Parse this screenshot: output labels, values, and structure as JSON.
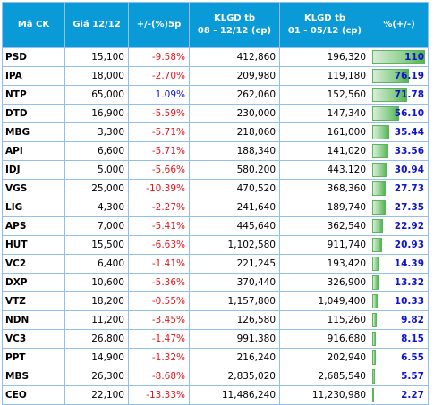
{
  "headers": {
    "code": "Mã CK",
    "price": "Giá 12/12",
    "change": "+/-(%)5p",
    "vol1_line1": "KLGD tb",
    "vol1_line2": "08 - 12/12 (cp)",
    "vol2_line1": "KLGD tb",
    "vol2_line2": "01 - 05/12 (cp)",
    "pct": "%(+/-)"
  },
  "colors": {
    "header_bg": "#0b9ad8",
    "negative": "#e8141c",
    "positive": "#1015c8",
    "bar": "#55b455",
    "grid": "#8fc0f0"
  },
  "rows": [
    {
      "code": "PSD",
      "price": "15,100",
      "change": "-9.58%",
      "dir": "neg",
      "vol1": "412,860",
      "vol2": "196,320",
      "pct": "110",
      "pct_value": 110
    },
    {
      "code": "IPA",
      "price": "18,000",
      "change": "-2.70%",
      "dir": "neg",
      "vol1": "209,980",
      "vol2": "119,180",
      "pct": "76.19",
      "pct_value": 76.19
    },
    {
      "code": "NTP",
      "price": "65,000",
      "change": "1.09%",
      "dir": "pos",
      "vol1": "262,060",
      "vol2": "152,560",
      "pct": "71.78",
      "pct_value": 71.78
    },
    {
      "code": "DTD",
      "price": "16,900",
      "change": "-5.59%",
      "dir": "neg",
      "vol1": "230,000",
      "vol2": "147,340",
      "pct": "56.10",
      "pct_value": 56.1
    },
    {
      "code": "MBG",
      "price": "3,300",
      "change": "-5.71%",
      "dir": "neg",
      "vol1": "218,060",
      "vol2": "161,000",
      "pct": "35.44",
      "pct_value": 35.44
    },
    {
      "code": "API",
      "price": "6,600",
      "change": "-5.71%",
      "dir": "neg",
      "vol1": "188,340",
      "vol2": "141,020",
      "pct": "33.56",
      "pct_value": 33.56
    },
    {
      "code": "IDJ",
      "price": "5,000",
      "change": "-5.66%",
      "dir": "neg",
      "vol1": "580,200",
      "vol2": "443,120",
      "pct": "30.94",
      "pct_value": 30.94
    },
    {
      "code": "VGS",
      "price": "25,000",
      "change": "-10.39%",
      "dir": "neg",
      "vol1": "470,520",
      "vol2": "368,360",
      "pct": "27.73",
      "pct_value": 27.73
    },
    {
      "code": "LIG",
      "price": "4,300",
      "change": "-2.27%",
      "dir": "neg",
      "vol1": "241,640",
      "vol2": "189,740",
      "pct": "27.35",
      "pct_value": 27.35
    },
    {
      "code": "APS",
      "price": "7,000",
      "change": "-5.41%",
      "dir": "neg",
      "vol1": "445,640",
      "vol2": "362,540",
      "pct": "22.92",
      "pct_value": 22.92
    },
    {
      "code": "HUT",
      "price": "15,500",
      "change": "-6.63%",
      "dir": "neg",
      "vol1": "1,102,580",
      "vol2": "911,740",
      "pct": "20.93",
      "pct_value": 20.93
    },
    {
      "code": "VC2",
      "price": "6,400",
      "change": "-1.41%",
      "dir": "neg",
      "vol1": "221,245",
      "vol2": "193,420",
      "pct": "14.39",
      "pct_value": 14.39
    },
    {
      "code": "DXP",
      "price": "10,600",
      "change": "-5.36%",
      "dir": "neg",
      "vol1": "370,440",
      "vol2": "326,900",
      "pct": "13.32",
      "pct_value": 13.32
    },
    {
      "code": "VTZ",
      "price": "18,200",
      "change": "-0.55%",
      "dir": "neg",
      "vol1": "1,157,800",
      "vol2": "1,049,400",
      "pct": "10.33",
      "pct_value": 10.33
    },
    {
      "code": "NDN",
      "price": "11,200",
      "change": "-3.45%",
      "dir": "neg",
      "vol1": "126,580",
      "vol2": "115,260",
      "pct": "9.82",
      "pct_value": 9.82
    },
    {
      "code": "VC3",
      "price": "26,800",
      "change": "-1.47%",
      "dir": "neg",
      "vol1": "991,380",
      "vol2": "916,680",
      "pct": "8.15",
      "pct_value": 8.15
    },
    {
      "code": "PPT",
      "price": "14,900",
      "change": "-1.32%",
      "dir": "neg",
      "vol1": "216,240",
      "vol2": "202,940",
      "pct": "6.55",
      "pct_value": 6.55
    },
    {
      "code": "MBS",
      "price": "26,300",
      "change": "-8.68%",
      "dir": "neg",
      "vol1": "2,835,020",
      "vol2": "2,685,540",
      "pct": "5.57",
      "pct_value": 5.57
    },
    {
      "code": "CEO",
      "price": "22,100",
      "change": "-13.33%",
      "dir": "neg",
      "vol1": "11,486,240",
      "vol2": "11,230,980",
      "pct": "2.27",
      "pct_value": 2.27
    }
  ]
}
